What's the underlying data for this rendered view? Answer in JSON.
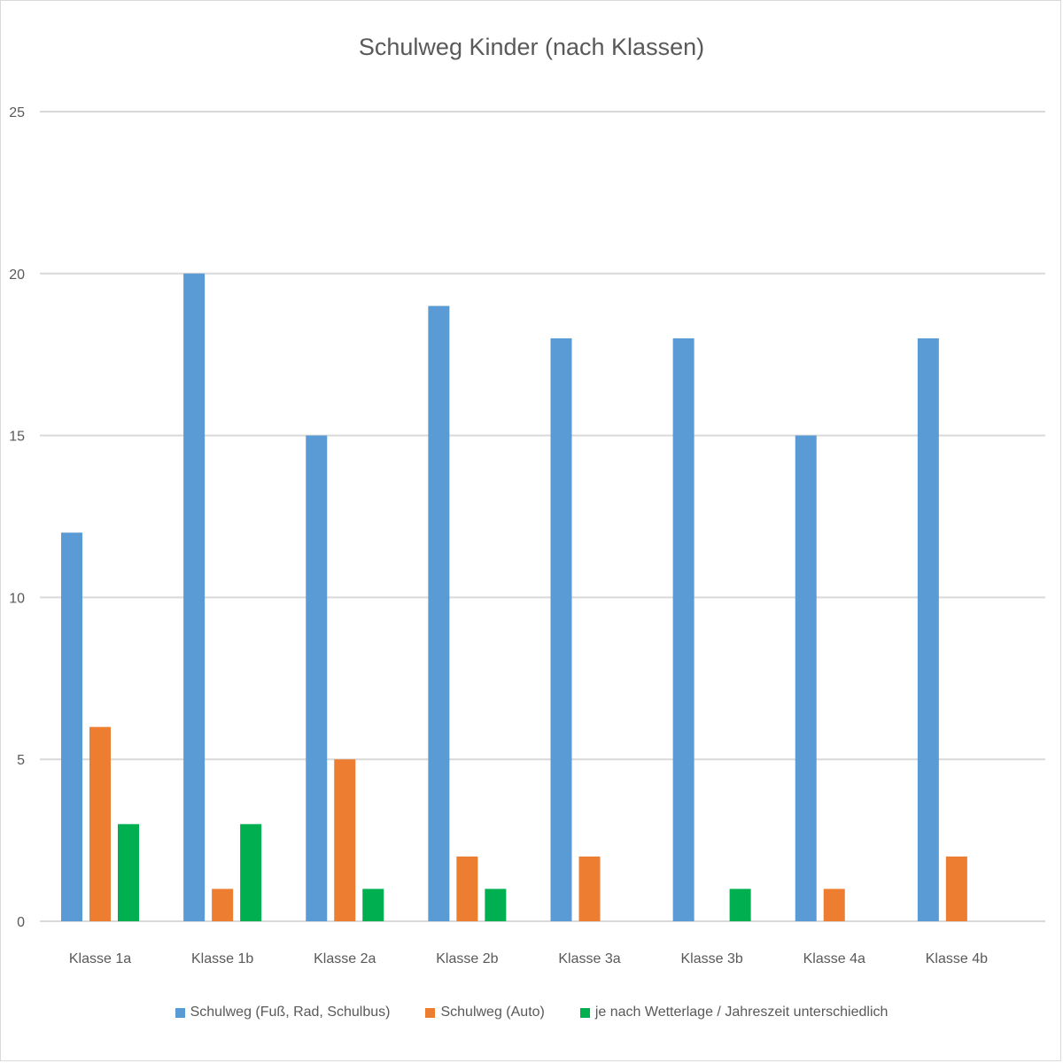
{
  "colors": {
    "series1": "#5b9bd5",
    "series2": "#ed7d31",
    "series3": "#00b050",
    "grid": "#d9d9d9",
    "text": "#595959"
  },
  "chart_data": {
    "type": "bar",
    "title": "Schulweg Kinder (nach Klassen)",
    "xlabel": "",
    "ylabel": "",
    "ylim": [
      0,
      25
    ],
    "yticks": [
      0,
      5,
      10,
      15,
      20,
      25
    ],
    "grid": true,
    "legend_position": "bottom",
    "categories": [
      "Klasse 1a",
      "Klasse 1b",
      "Klasse 2a",
      "Klasse 2b",
      "Klasse 3a",
      "Klasse 3b",
      "Klasse 4a",
      "Klasse 4b"
    ],
    "series": [
      {
        "name": "Schulweg  (Fuß, Rad, Schulbus)",
        "values": [
          12,
          20,
          15,
          19,
          18,
          18,
          15,
          18
        ]
      },
      {
        "name": "Schulweg (Auto)",
        "values": [
          6,
          1,
          5,
          2,
          2,
          0,
          1,
          2
        ]
      },
      {
        "name": "je nach Wetterlage / Jahreszeit unterschiedlich",
        "values": [
          3,
          3,
          1,
          1,
          0,
          1,
          0,
          0
        ]
      }
    ]
  }
}
